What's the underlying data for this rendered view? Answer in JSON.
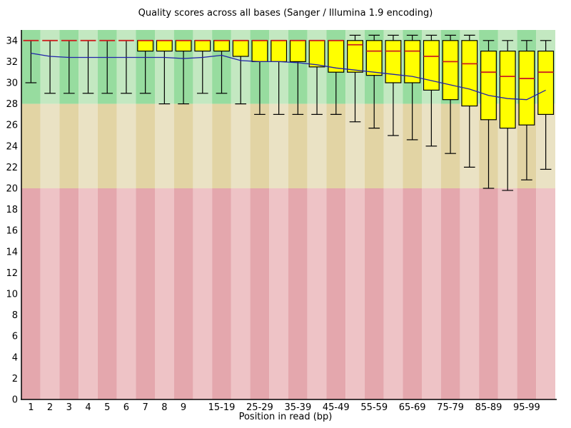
{
  "title": "Quality scores across all bases (Sanger / Illumina 1.9 encoding)",
  "chart_data": {
    "type": "boxplot",
    "title": "Quality scores across all bases (Sanger / Illumina 1.9 encoding)",
    "xlabel": "Position in read (bp)",
    "ylabel": "",
    "ylim": [
      0,
      35
    ],
    "grid": false,
    "legend": "none",
    "y_ticks": [
      0,
      2,
      4,
      6,
      8,
      10,
      12,
      14,
      16,
      18,
      20,
      22,
      24,
      26,
      28,
      30,
      32,
      34
    ],
    "zones": [
      {
        "name": "good",
        "q_from": 28,
        "q_to": 35,
        "dark": "#97DC9F",
        "light": "#C3E8C1"
      },
      {
        "name": "medium",
        "q_from": 20,
        "q_to": 28,
        "dark": "#E2D4A4",
        "light": "#EAE2C4"
      },
      {
        "name": "poor",
        "q_from": 0,
        "q_to": 20,
        "dark": "#E4A7AD",
        "light": "#EEC3C6"
      }
    ],
    "colors": {
      "box_fill": "#FFFF00",
      "box_border": "#000000",
      "median": "#CC2020",
      "whisker": "#000000",
      "mean_line": "#2222AA",
      "axis": "#000000"
    },
    "boxes": [
      {
        "label": "1",
        "lo": 30.0,
        "q1": 34.0,
        "median": 34.0,
        "q3": 34.0,
        "hi": 34.0,
        "mean": 32.8
      },
      {
        "label": "2",
        "lo": 29.0,
        "q1": 34.0,
        "median": 34.0,
        "q3": 34.0,
        "hi": 34.0,
        "mean": 32.5
      },
      {
        "label": "3",
        "lo": 29.0,
        "q1": 34.0,
        "median": 34.0,
        "q3": 34.0,
        "hi": 34.0,
        "mean": 32.4
      },
      {
        "label": "4",
        "lo": 29.0,
        "q1": 34.0,
        "median": 34.0,
        "q3": 34.0,
        "hi": 34.0,
        "mean": 32.4
      },
      {
        "label": "5",
        "lo": 29.0,
        "q1": 34.0,
        "median": 34.0,
        "q3": 34.0,
        "hi": 34.0,
        "mean": 32.4
      },
      {
        "label": "6",
        "lo": 29.0,
        "q1": 34.0,
        "median": 34.0,
        "q3": 34.0,
        "hi": 34.0,
        "mean": 32.4
      },
      {
        "label": "7",
        "lo": 29.0,
        "q1": 33.0,
        "median": 34.0,
        "q3": 34.0,
        "hi": 34.0,
        "mean": 32.4
      },
      {
        "label": "8",
        "lo": 28.0,
        "q1": 33.0,
        "median": 34.0,
        "q3": 34.0,
        "hi": 34.0,
        "mean": 32.4
      },
      {
        "label": "9",
        "lo": 28.0,
        "q1": 33.0,
        "median": 34.0,
        "q3": 34.0,
        "hi": 34.0,
        "mean": 32.3
      },
      {
        "label": "",
        "lo": 29.0,
        "q1": 33.0,
        "median": 34.0,
        "q3": 34.0,
        "hi": 34.0,
        "mean": 32.4
      },
      {
        "label": "15-19",
        "lo": 29.0,
        "q1": 33.0,
        "median": 34.0,
        "q3": 34.0,
        "hi": 34.0,
        "mean": 32.6
      },
      {
        "label": "",
        "lo": 28.0,
        "q1": 32.5,
        "median": 34.0,
        "q3": 34.0,
        "hi": 34.0,
        "mean": 32.1
      },
      {
        "label": "25-29",
        "lo": 27.0,
        "q1": 32.0,
        "median": 34.0,
        "q3": 34.0,
        "hi": 34.0,
        "mean": 32.0
      },
      {
        "label": "",
        "lo": 27.0,
        "q1": 32.0,
        "median": 34.0,
        "q3": 34.0,
        "hi": 34.0,
        "mean": 32.0
      },
      {
        "label": "35-39",
        "lo": 27.0,
        "q1": 32.0,
        "median": 34.0,
        "q3": 34.0,
        "hi": 34.0,
        "mean": 31.9
      },
      {
        "label": "",
        "lo": 27.0,
        "q1": 31.5,
        "median": 34.0,
        "q3": 34.0,
        "hi": 34.0,
        "mean": 31.7
      },
      {
        "label": "45-49",
        "lo": 27.0,
        "q1": 31.0,
        "median": 34.0,
        "q3": 34.0,
        "hi": 34.0,
        "mean": 31.4
      },
      {
        "label": "",
        "lo": 26.3,
        "q1": 31.0,
        "median": 33.6,
        "q3": 34.0,
        "hi": 34.5,
        "mean": 31.2
      },
      {
        "label": "55-59",
        "lo": 25.7,
        "q1": 30.7,
        "median": 33.0,
        "q3": 34.0,
        "hi": 34.5,
        "mean": 31.0
      },
      {
        "label": "",
        "lo": 25.0,
        "q1": 30.0,
        "median": 33.0,
        "q3": 34.0,
        "hi": 34.5,
        "mean": 30.8
      },
      {
        "label": "65-69",
        "lo": 24.6,
        "q1": 30.0,
        "median": 33.0,
        "q3": 34.0,
        "hi": 34.5,
        "mean": 30.6
      },
      {
        "label": "",
        "lo": 24.0,
        "q1": 29.3,
        "median": 32.5,
        "q3": 34.0,
        "hi": 34.5,
        "mean": 30.2
      },
      {
        "label": "75-79",
        "lo": 23.3,
        "q1": 28.4,
        "median": 32.0,
        "q3": 34.0,
        "hi": 34.5,
        "mean": 29.8
      },
      {
        "label": "",
        "lo": 22.0,
        "q1": 27.8,
        "median": 31.8,
        "q3": 34.0,
        "hi": 34.5,
        "mean": 29.4
      },
      {
        "label": "85-89",
        "lo": 20.0,
        "q1": 26.5,
        "median": 31.0,
        "q3": 33.0,
        "hi": 34.0,
        "mean": 28.8
      },
      {
        "label": "",
        "lo": 19.8,
        "q1": 25.7,
        "median": 30.6,
        "q3": 33.0,
        "hi": 34.0,
        "mean": 28.5
      },
      {
        "label": "95-99",
        "lo": 20.8,
        "q1": 26.0,
        "median": 30.4,
        "q3": 33.0,
        "hi": 34.0,
        "mean": 28.4
      },
      {
        "label": "",
        "lo": 21.8,
        "q1": 27.0,
        "median": 31.0,
        "q3": 33.0,
        "hi": 34.0,
        "mean": 29.3
      }
    ]
  }
}
